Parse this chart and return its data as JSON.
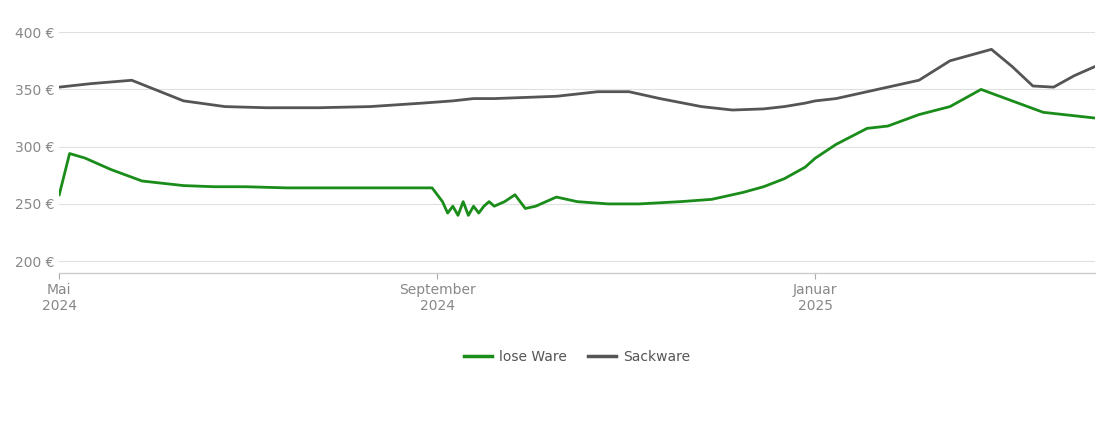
{
  "title": "",
  "background_color": "#ffffff",
  "plot_bg_color": "#ffffff",
  "grid_color": "#e0e0e0",
  "y_ticks": [
    200,
    250,
    300,
    350,
    400
  ],
  "y_tick_labels": [
    "200 €",
    "250 €",
    "300 €",
    "350 €",
    "400 €"
  ],
  "ylim": [
    190,
    415
  ],
  "x_tick_labels": [
    "Mai\n2024",
    "September\n2024",
    "Januar\n2025"
  ],
  "x_tick_positions": [
    0.0,
    0.365,
    0.73
  ],
  "legend_labels": [
    "lose Ware",
    "Sackware"
  ],
  "legend_colors": [
    "#1a8c1a",
    "#555555"
  ],
  "lose_ware_color": "#1a8c1a",
  "sackware_color": "#555555",
  "line_width": 2.0,
  "lose_ware": {
    "t": [
      0.0,
      0.01,
      0.025,
      0.05,
      0.08,
      0.12,
      0.15,
      0.18,
      0.22,
      0.27,
      0.3,
      0.33,
      0.36,
      0.37,
      0.375,
      0.38,
      0.385,
      0.39,
      0.395,
      0.4,
      0.405,
      0.41,
      0.415,
      0.42,
      0.43,
      0.44,
      0.45,
      0.46,
      0.47,
      0.48,
      0.5,
      0.53,
      0.56,
      0.6,
      0.63,
      0.66,
      0.68,
      0.7,
      0.72,
      0.73,
      0.75,
      0.78,
      0.8,
      0.83,
      0.86,
      0.89,
      0.92,
      0.95,
      0.97,
      1.0
    ],
    "v": [
      258,
      294,
      290,
      280,
      270,
      266,
      265,
      265,
      264,
      264,
      264,
      264,
      264,
      252,
      242,
      248,
      240,
      252,
      240,
      248,
      242,
      248,
      252,
      248,
      252,
      258,
      246,
      248,
      252,
      256,
      252,
      250,
      250,
      252,
      254,
      260,
      265,
      272,
      282,
      290,
      302,
      316,
      318,
      328,
      335,
      350,
      340,
      330,
      328,
      325
    ]
  },
  "sackware": {
    "t": [
      0.0,
      0.03,
      0.07,
      0.12,
      0.16,
      0.2,
      0.25,
      0.3,
      0.35,
      0.38,
      0.4,
      0.42,
      0.45,
      0.48,
      0.52,
      0.55,
      0.58,
      0.62,
      0.65,
      0.68,
      0.7,
      0.72,
      0.73,
      0.75,
      0.78,
      0.8,
      0.83,
      0.86,
      0.88,
      0.9,
      0.92,
      0.94,
      0.96,
      0.98,
      1.0
    ],
    "v": [
      352,
      355,
      358,
      340,
      335,
      334,
      334,
      335,
      338,
      340,
      342,
      342,
      343,
      344,
      348,
      348,
      342,
      335,
      332,
      333,
      335,
      338,
      340,
      342,
      348,
      352,
      358,
      375,
      380,
      385,
      370,
      353,
      352,
      362,
      370
    ]
  }
}
